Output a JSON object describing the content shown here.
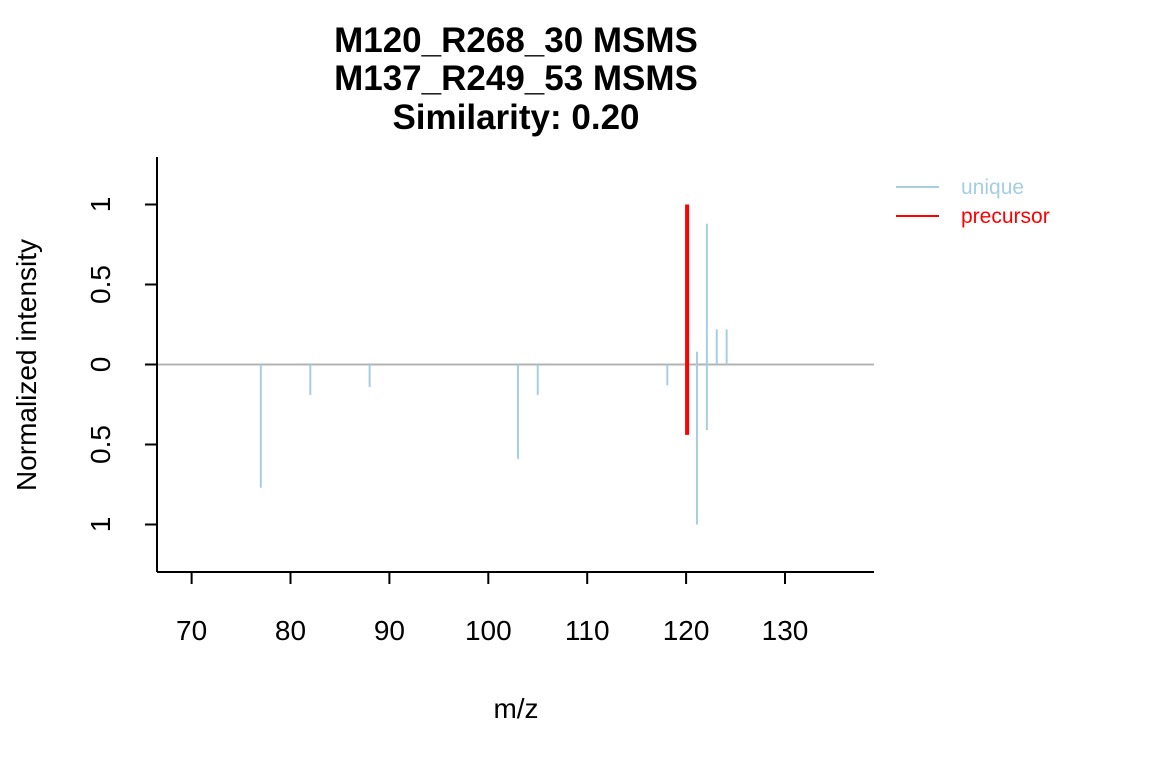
{
  "chart_data": {
    "type": "bar",
    "title_lines": [
      "M120_R268_30 MSMS",
      "M137_R249_53 MSMS",
      "Similarity: 0.20"
    ],
    "xlabel": "m/z",
    "ylabel": "Normalized intensity",
    "xlim": [
      66.5,
      139.0
    ],
    "ylim": [
      -1.3,
      1.3
    ],
    "x_ticks": [
      70,
      80,
      90,
      100,
      110,
      120,
      130
    ],
    "y_ticks": [
      {
        "value": 1,
        "label": "1"
      },
      {
        "value": 0.5,
        "label": "0.5"
      },
      {
        "value": 0,
        "label": "0"
      },
      {
        "value": -0.5,
        "label": "0.5"
      },
      {
        "value": -1,
        "label": "1"
      }
    ],
    "colors": {
      "unique": "#a6cee3",
      "precursor": "#ff0000",
      "baseline": "#b3b3b3",
      "axis": "#000000"
    },
    "legend": {
      "position": "top-right",
      "entries": [
        {
          "label": "unique",
          "color": "#a6cee3"
        },
        {
          "label": "precursor",
          "color": "#ff0000"
        }
      ]
    },
    "series": [
      {
        "name": "unique",
        "spectrum": "top",
        "points": [
          {
            "x": 121.1,
            "y": 0.08
          },
          {
            "x": 122.1,
            "y": 0.88
          },
          {
            "x": 123.1,
            "y": 0.22
          },
          {
            "x": 124.1,
            "y": 0.22
          }
        ]
      },
      {
        "name": "unique",
        "spectrum": "bottom",
        "points": [
          {
            "x": 77.0,
            "y": -0.77
          },
          {
            "x": 82.0,
            "y": -0.19
          },
          {
            "x": 88.0,
            "y": -0.14
          },
          {
            "x": 103.0,
            "y": -0.59
          },
          {
            "x": 105.0,
            "y": -0.19
          },
          {
            "x": 118.1,
            "y": -0.13
          },
          {
            "x": 120.1,
            "y": -0.17
          },
          {
            "x": 121.1,
            "y": -1.0
          },
          {
            "x": 122.1,
            "y": -0.41
          }
        ]
      },
      {
        "name": "precursor",
        "points": [
          {
            "x": 120.1,
            "y": 1.0
          },
          {
            "x": 120.1,
            "y": -0.44
          }
        ]
      }
    ]
  }
}
